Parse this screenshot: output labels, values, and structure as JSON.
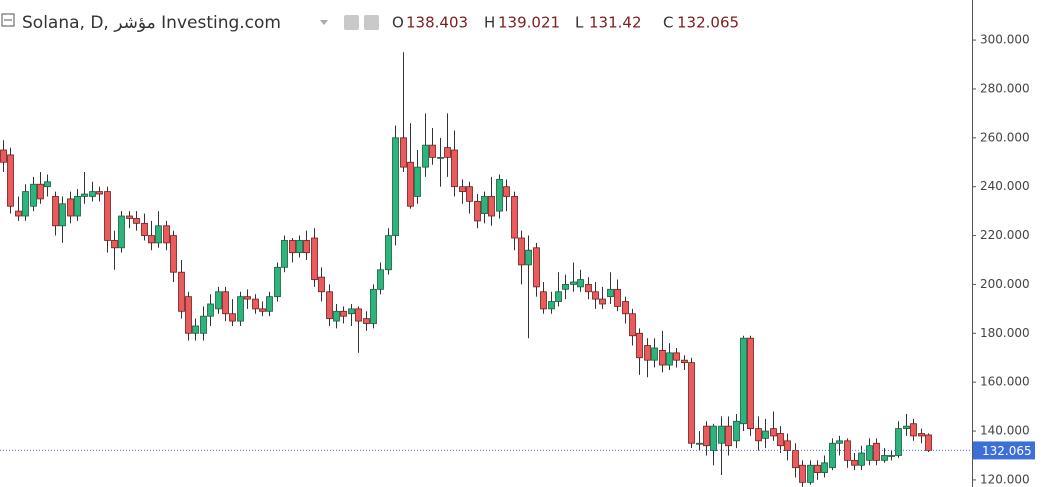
{
  "chart_data": {
    "type": "candlestick",
    "title": "Solana, D, مؤشر Investing.com",
    "ohlc_labels": [
      "O",
      "H",
      "L",
      "C"
    ],
    "up_color": "#2bb47b",
    "down_color": "#ec5b5b",
    "ylim": [
      117.1,
      316.4
    ],
    "yticks": [
      {
        "value": 120,
        "label": "120.000"
      },
      {
        "value": 140,
        "label": "140.000"
      },
      {
        "value": 160,
        "label": "160.000"
      },
      {
        "value": 180,
        "label": "180.000"
      },
      {
        "value": 200,
        "label": "200.000"
      },
      {
        "value": 220,
        "label": "220.000"
      },
      {
        "value": 240,
        "label": "240.000"
      },
      {
        "value": 260,
        "label": "260.000"
      },
      {
        "value": 280,
        "label": "280.000"
      },
      {
        "value": 300,
        "label": "300.000"
      }
    ],
    "ohlc": [
      [
        255,
        259,
        246,
        250
      ],
      [
        253,
        256,
        229,
        232
      ],
      [
        230,
        236,
        226,
        228
      ],
      [
        228,
        241,
        226,
        238
      ],
      [
        232,
        244,
        230,
        241
      ],
      [
        241,
        246,
        233,
        235
      ],
      [
        240,
        245,
        236,
        242
      ],
      [
        236,
        238,
        220,
        224
      ],
      [
        224,
        236,
        217,
        233
      ],
      [
        235,
        238,
        225,
        228
      ],
      [
        228,
        239,
        226,
        236
      ],
      [
        236,
        246,
        233,
        237
      ],
      [
        236,
        242,
        234,
        238
      ],
      [
        238,
        240,
        234,
        237
      ],
      [
        238,
        240,
        213,
        218
      ],
      [
        218,
        222,
        206,
        215
      ],
      [
        215,
        230,
        213,
        228
      ],
      [
        228,
        230,
        223,
        227
      ],
      [
        227,
        230,
        222,
        225
      ],
      [
        225,
        229,
        218,
        220
      ],
      [
        220,
        226,
        214,
        217
      ],
      [
        217,
        230,
        215,
        224
      ],
      [
        224,
        226,
        214,
        217
      ],
      [
        220,
        222,
        201,
        205
      ],
      [
        205,
        210,
        186,
        189
      ],
      [
        195,
        197,
        177,
        180
      ],
      [
        180,
        186,
        177,
        183
      ],
      [
        180,
        191,
        177,
        187
      ],
      [
        187,
        196,
        183,
        192
      ],
      [
        190,
        199,
        188,
        197
      ],
      [
        197,
        199,
        185,
        188
      ],
      [
        188,
        194,
        183,
        185
      ],
      [
        185,
        197,
        183,
        195
      ],
      [
        195,
        198,
        190,
        194
      ],
      [
        194,
        196,
        188,
        190
      ],
      [
        190,
        193,
        187,
        189
      ],
      [
        189,
        197,
        187,
        195
      ],
      [
        195,
        209,
        193,
        207
      ],
      [
        207,
        220,
        205,
        218
      ],
      [
        218,
        219,
        209,
        213
      ],
      [
        213,
        220,
        211,
        218
      ],
      [
        218,
        222,
        210,
        213
      ],
      [
        219,
        223,
        199,
        202
      ],
      [
        203,
        207,
        193,
        197
      ],
      [
        197,
        200,
        183,
        186
      ],
      [
        185,
        192,
        182,
        189
      ],
      [
        189,
        191,
        184,
        187
      ],
      [
        188,
        192,
        183,
        190
      ],
      [
        190,
        191,
        172,
        185
      ],
      [
        186,
        189,
        181,
        184
      ],
      [
        184,
        200,
        182,
        198
      ],
      [
        198,
        209,
        196,
        206
      ],
      [
        206,
        223,
        204,
        220
      ],
      [
        220,
        265,
        216,
        260
      ],
      [
        260,
        295,
        246,
        248
      ],
      [
        250,
        266,
        231,
        232
      ],
      [
        236,
        255,
        233,
        248
      ],
      [
        248,
        270,
        244,
        257
      ],
      [
        257,
        264,
        249,
        252
      ],
      [
        252,
        260,
        240,
        252
      ],
      [
        256,
        270,
        244,
        252
      ],
      [
        255,
        263,
        236,
        240
      ],
      [
        240,
        243,
        233,
        238
      ],
      [
        240,
        242,
        229,
        234
      ],
      [
        234,
        237,
        223,
        226
      ],
      [
        229,
        238,
        225,
        236
      ],
      [
        236,
        244,
        224,
        228
      ],
      [
        230,
        245,
        227,
        243
      ],
      [
        240,
        243,
        230,
        236
      ],
      [
        236,
        238,
        214,
        219
      ],
      [
        219,
        222,
        200,
        208
      ],
      [
        208,
        220,
        178,
        214
      ],
      [
        215,
        217,
        195,
        199
      ],
      [
        197,
        201,
        188,
        190
      ],
      [
        190,
        197,
        188,
        193
      ],
      [
        193,
        205,
        191,
        197
      ],
      [
        198,
        204,
        194,
        200
      ],
      [
        200,
        209,
        197,
        201
      ],
      [
        199,
        206,
        197,
        202
      ],
      [
        200,
        203,
        194,
        197
      ],
      [
        197,
        201,
        190,
        194
      ],
      [
        194,
        199,
        190,
        192
      ],
      [
        195,
        205,
        192,
        198
      ],
      [
        198,
        202,
        189,
        191
      ],
      [
        193,
        195,
        184,
        188
      ],
      [
        188,
        190,
        175,
        179
      ],
      [
        180,
        182,
        163,
        170
      ],
      [
        175,
        178,
        162,
        169
      ],
      [
        169,
        178,
        166,
        174
      ],
      [
        173,
        181,
        164,
        167
      ],
      [
        167,
        176,
        165,
        172
      ],
      [
        172,
        174,
        166,
        169
      ],
      [
        169,
        171,
        165,
        168
      ],
      [
        168,
        170,
        133,
        135
      ],
      [
        135,
        140,
        132,
        135
      ],
      [
        142,
        144,
        130,
        134
      ],
      [
        132,
        143,
        126,
        142
      ],
      [
        135,
        146,
        122,
        142
      ],
      [
        142,
        146,
        130,
        134
      ],
      [
        136,
        147,
        133,
        144
      ],
      [
        143,
        179,
        140,
        178
      ],
      [
        178,
        179,
        138,
        141
      ],
      [
        141,
        146,
        132,
        136
      ],
      [
        137,
        145,
        133,
        140
      ],
      [
        141,
        148,
        136,
        138
      ],
      [
        139,
        142,
        131,
        134
      ],
      [
        136,
        139,
        128,
        132
      ],
      [
        132,
        135,
        121,
        125
      ],
      [
        126,
        128,
        117,
        119
      ],
      [
        119,
        128,
        118,
        126
      ],
      [
        126,
        128,
        120,
        123
      ],
      [
        123,
        130,
        121,
        127
      ],
      [
        125,
        137,
        124,
        135
      ],
      [
        135,
        138,
        130,
        136
      ],
      [
        136,
        137,
        125,
        128
      ],
      [
        128,
        131,
        124,
        126
      ],
      [
        126,
        134,
        124,
        131
      ],
      [
        128,
        137,
        126,
        134
      ],
      [
        135,
        137,
        126,
        128
      ],
      [
        128,
        133,
        127,
        130
      ],
      [
        130,
        132,
        128,
        130
      ],
      [
        130,
        144,
        129,
        141
      ],
      [
        141,
        147,
        138,
        142
      ],
      [
        143,
        145,
        136,
        138
      ],
      [
        139,
        141,
        135,
        138
      ],
      [
        138.403,
        139.021,
        131.42,
        132.065
      ]
    ]
  }
}
